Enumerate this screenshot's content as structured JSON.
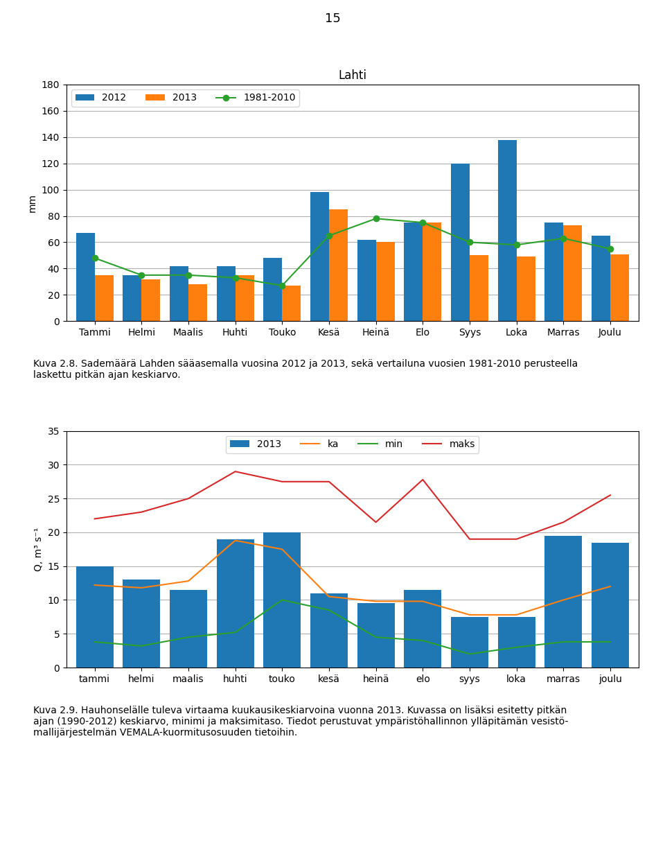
{
  "page_number": "15",
  "chart_data": [
    {
      "type": "bar",
      "title": "Lahti",
      "y_label": "mm",
      "categories": [
        "Tammi",
        "Helmi",
        "Maalis",
        "Huhti",
        "Touko",
        "Kesä",
        "Heinä",
        "Elo",
        "Syys",
        "Loka",
        "Marras",
        "Joulu"
      ],
      "series": [
        {
          "name": "2012",
          "type": "bar",
          "color": "#1f77b4",
          "values": [
            67,
            35,
            42,
            42,
            48,
            98,
            62,
            75,
            120,
            138,
            75,
            65
          ]
        },
        {
          "name": "2013",
          "type": "bar",
          "color": "#ff7f0e",
          "values": [
            35,
            32,
            28,
            35,
            27,
            85,
            60,
            75,
            50,
            49,
            73,
            51
          ]
        },
        {
          "name": "1981-2010",
          "type": "line",
          "color": "#2ca02c",
          "marker": "o",
          "values": [
            48,
            35,
            35,
            33,
            27,
            65,
            78,
            75,
            60,
            58,
            63,
            55
          ]
        }
      ],
      "ylim": [
        0,
        180
      ],
      "yticks": [
        0,
        20,
        40,
        60,
        80,
        100,
        120,
        140,
        160,
        180
      ],
      "grid": true,
      "legend": "upper left",
      "caption": "Kuva 2.8. Sademäärä Lahden sääasemalla vuosina 2012 ja 2013, sekä vertailuna vuosien 1981-2010 perusteella\nlaskettu pitkän ajan keskiarvo."
    },
    {
      "type": "bar",
      "y_label": "Q, m³ s⁻¹",
      "categories": [
        "tammi",
        "helmi",
        "maalis",
        "huhti",
        "touko",
        "kesä",
        "heinä",
        "elo",
        "syys",
        "loka",
        "marras",
        "joulu"
      ],
      "series": [
        {
          "name": "2013",
          "type": "bar",
          "color": "#1f77b4",
          "values": [
            15.0,
            13.0,
            11.5,
            19.0,
            20.0,
            11.0,
            9.5,
            11.5,
            7.5,
            7.5,
            19.5,
            18.5
          ]
        },
        {
          "name": "ka",
          "type": "line",
          "color": "#ff7f0e",
          "values": [
            12.2,
            11.8,
            12.8,
            18.8,
            17.5,
            10.5,
            9.8,
            9.8,
            7.8,
            7.8,
            10.0,
            12.0
          ]
        },
        {
          "name": "min",
          "type": "line",
          "color": "#2ca02c",
          "values": [
            3.8,
            3.2,
            4.5,
            5.2,
            10.0,
            8.5,
            4.5,
            4.0,
            2.0,
            3.0,
            3.8,
            3.8
          ]
        },
        {
          "name": "maks",
          "type": "line",
          "color": "#d62728",
          "values": [
            22.0,
            23.0,
            25.0,
            29.0,
            27.5,
            27.5,
            21.5,
            27.8,
            19.0,
            19.0,
            21.5,
            25.5
          ]
        }
      ],
      "ylim": [
        0,
        35
      ],
      "yticks": [
        0,
        5,
        10,
        15,
        20,
        25,
        30,
        35
      ],
      "grid": true,
      "legend": "upper center",
      "caption": "Kuva 2.9. Hauhonselälle tuleva virtaama kuukausikeskiarvoina vuonna 2013. Kuvassa on lisäksi esitetty pitkän\najan (1990-2012) keskiarvo, minimi ja maksimitaso. Tiedot perustuvat ympäristöhallinnon ylläpitämän vesistö-\nmallijärjestelmän VEMALA-kuormitusosuuden tietoihin."
    }
  ]
}
